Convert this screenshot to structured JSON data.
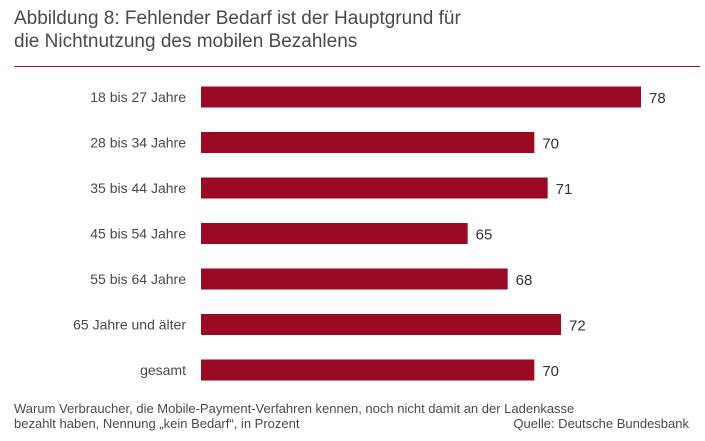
{
  "title_line1": "Abbildung 8: Fehlender Bedarf ist der Hauptgrund für",
  "title_line2": "die Nichtnutzung des mobilen Bezahlens",
  "footnote_line1": "Warum Verbraucher, die Mobile-Payment-Verfahren kennen, noch nicht damit an der Ladenkasse",
  "footnote_line2": "bezahlt haben, Nennung „kein Bedarf“, in Prozent",
  "source": "Quelle: Deutsche Bundesbank",
  "colors": {
    "bar": "#9b0a25",
    "rule": "#a0182c"
  },
  "chart_data": {
    "type": "bar",
    "orientation": "horizontal",
    "categories": [
      "18 bis 27 Jahre",
      "28 bis 34 Jahre",
      "35 bis 44 Jahre",
      "45 bis 54 Jahre",
      "55 bis 64 Jahre",
      "65 Jahre und älter",
      "gesamt"
    ],
    "values": [
      78,
      70,
      71,
      65,
      68,
      72,
      70
    ],
    "data_labels": [
      "78",
      "70",
      "71",
      "65",
      "68",
      "72",
      "70"
    ],
    "xlim": [
      45,
      78
    ],
    "grid": false,
    "legend": "none"
  }
}
